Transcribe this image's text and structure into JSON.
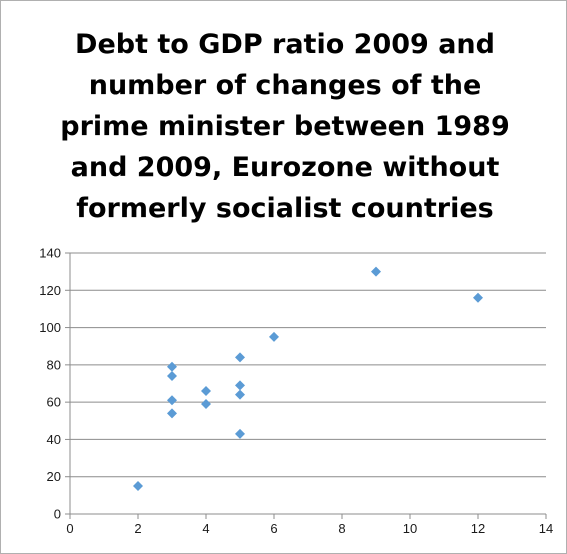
{
  "chart_data": {
    "type": "scatter",
    "title_lines": [
      "Debt to GDP ratio 2009 and",
      "number of changes of the",
      "prime minister between 1989",
      "and 2009, Eurozone without",
      "formerly socialist countries"
    ],
    "xlim": [
      0,
      14
    ],
    "ylim": [
      0,
      140
    ],
    "x_ticks": [
      0,
      2,
      4,
      6,
      8,
      10,
      12,
      14
    ],
    "y_ticks": [
      0,
      20,
      40,
      60,
      80,
      100,
      120,
      140
    ],
    "grid": "horizontal",
    "marker": "diamond",
    "color": "#5b9bd5",
    "points": [
      {
        "x": 2,
        "y": 15
      },
      {
        "x": 3,
        "y": 79
      },
      {
        "x": 3,
        "y": 74
      },
      {
        "x": 3,
        "y": 61
      },
      {
        "x": 3,
        "y": 54
      },
      {
        "x": 4,
        "y": 66
      },
      {
        "x": 4,
        "y": 59
      },
      {
        "x": 5,
        "y": 84
      },
      {
        "x": 5,
        "y": 69
      },
      {
        "x": 5,
        "y": 64
      },
      {
        "x": 5,
        "y": 43
      },
      {
        "x": 6,
        "y": 95
      },
      {
        "x": 9,
        "y": 130
      },
      {
        "x": 12,
        "y": 116
      }
    ]
  }
}
